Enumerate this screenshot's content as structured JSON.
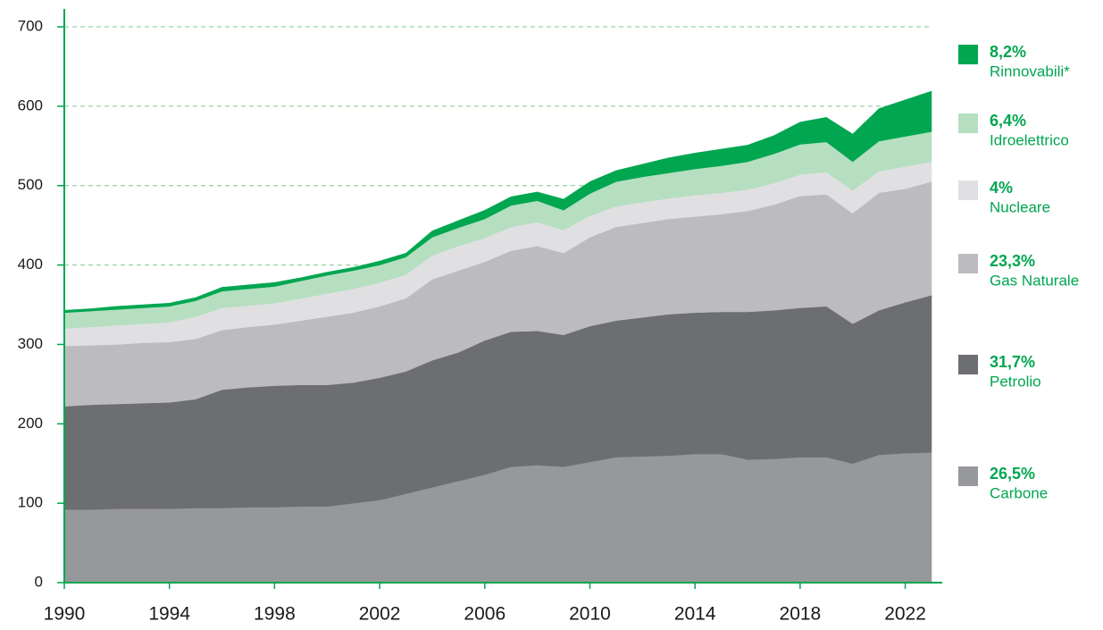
{
  "chart_data": {
    "type": "stacked-area",
    "x": [
      1990,
      1991,
      1992,
      1993,
      1994,
      1995,
      1996,
      1997,
      1998,
      1999,
      2000,
      2001,
      2002,
      2003,
      2004,
      2005,
      2006,
      2007,
      2008,
      2009,
      2010,
      2011,
      2012,
      2013,
      2014,
      2015,
      2016,
      2017,
      2018,
      2019,
      2020,
      2021,
      2022,
      2023
    ],
    "xlim": [
      1990,
      2023
    ],
    "xticks": [
      1990,
      1994,
      1998,
      2002,
      2006,
      2010,
      2014,
      2018,
      2022
    ],
    "ylim": [
      0,
      700
    ],
    "yticks": [
      0,
      100,
      200,
      300,
      400,
      500,
      600,
      700
    ],
    "grid": true,
    "legend": "right",
    "series": [
      {
        "name": "Carbone",
        "share": "26,5%",
        "color": "#97989c",
        "values": [
          92,
          92,
          93,
          93,
          93,
          94,
          94,
          95,
          95,
          96,
          96,
          100,
          104,
          112,
          120,
          128,
          136,
          146,
          148,
          146,
          152,
          158,
          159,
          160,
          162,
          162,
          155,
          156,
          158,
          158,
          150,
          161,
          163,
          164
        ]
      },
      {
        "name": "Petrolio",
        "share": "31,7%",
        "color": "#6d6e72",
        "values": [
          130,
          132,
          132,
          133,
          134,
          137,
          149,
          151,
          153,
          153,
          153,
          152,
          154,
          154,
          160,
          162,
          169,
          170,
          169,
          166,
          171,
          172,
          175,
          178,
          178,
          179,
          186,
          187,
          188,
          190,
          176,
          182,
          190,
          198
        ]
      },
      {
        "name": "Gas Naturale",
        "share": "23,3%",
        "color": "#bcbcc0",
        "values": [
          76,
          75,
          75,
          76,
          76,
          76,
          75,
          76,
          77,
          81,
          86,
          88,
          90,
          92,
          102,
          103,
          99,
          102,
          107,
          103,
          112,
          118,
          119,
          120,
          121,
          123,
          127,
          133,
          141,
          141,
          139,
          148,
          143,
          143
        ]
      },
      {
        "name": "Nucleare",
        "share": "4%",
        "color": "#e0e0e2",
        "values": [
          22,
          23,
          24,
          24,
          25,
          28,
          28,
          27,
          27,
          28,
          29,
          30,
          30,
          30,
          30,
          31,
          30,
          30,
          30,
          29,
          27,
          26,
          26,
          26,
          27,
          27,
          27,
          27,
          27,
          28,
          29,
          27,
          28,
          25
        ]
      },
      {
        "name": "Idroelettrico",
        "share": "6,4%",
        "color": "#b5dfc0",
        "values": [
          20,
          20,
          20,
          20,
          20,
          20,
          21,
          21,
          21,
          22,
          23,
          23,
          22,
          22,
          23,
          23,
          24,
          27,
          27,
          25,
          28,
          31,
          32,
          32,
          33,
          34,
          35,
          37,
          38,
          38,
          36,
          38,
          38,
          38
        ]
      },
      {
        "name": "Rinnovabili*",
        "share": "8,2%",
        "color": "#00a650",
        "values": [
          3,
          3,
          4,
          4,
          4,
          4,
          5,
          5,
          5,
          4,
          4,
          4,
          5,
          5,
          8,
          9,
          11,
          11,
          11,
          14,
          15,
          14,
          16,
          19,
          20,
          21,
          21,
          23,
          28,
          31,
          35,
          41,
          46,
          51
        ]
      }
    ]
  }
}
